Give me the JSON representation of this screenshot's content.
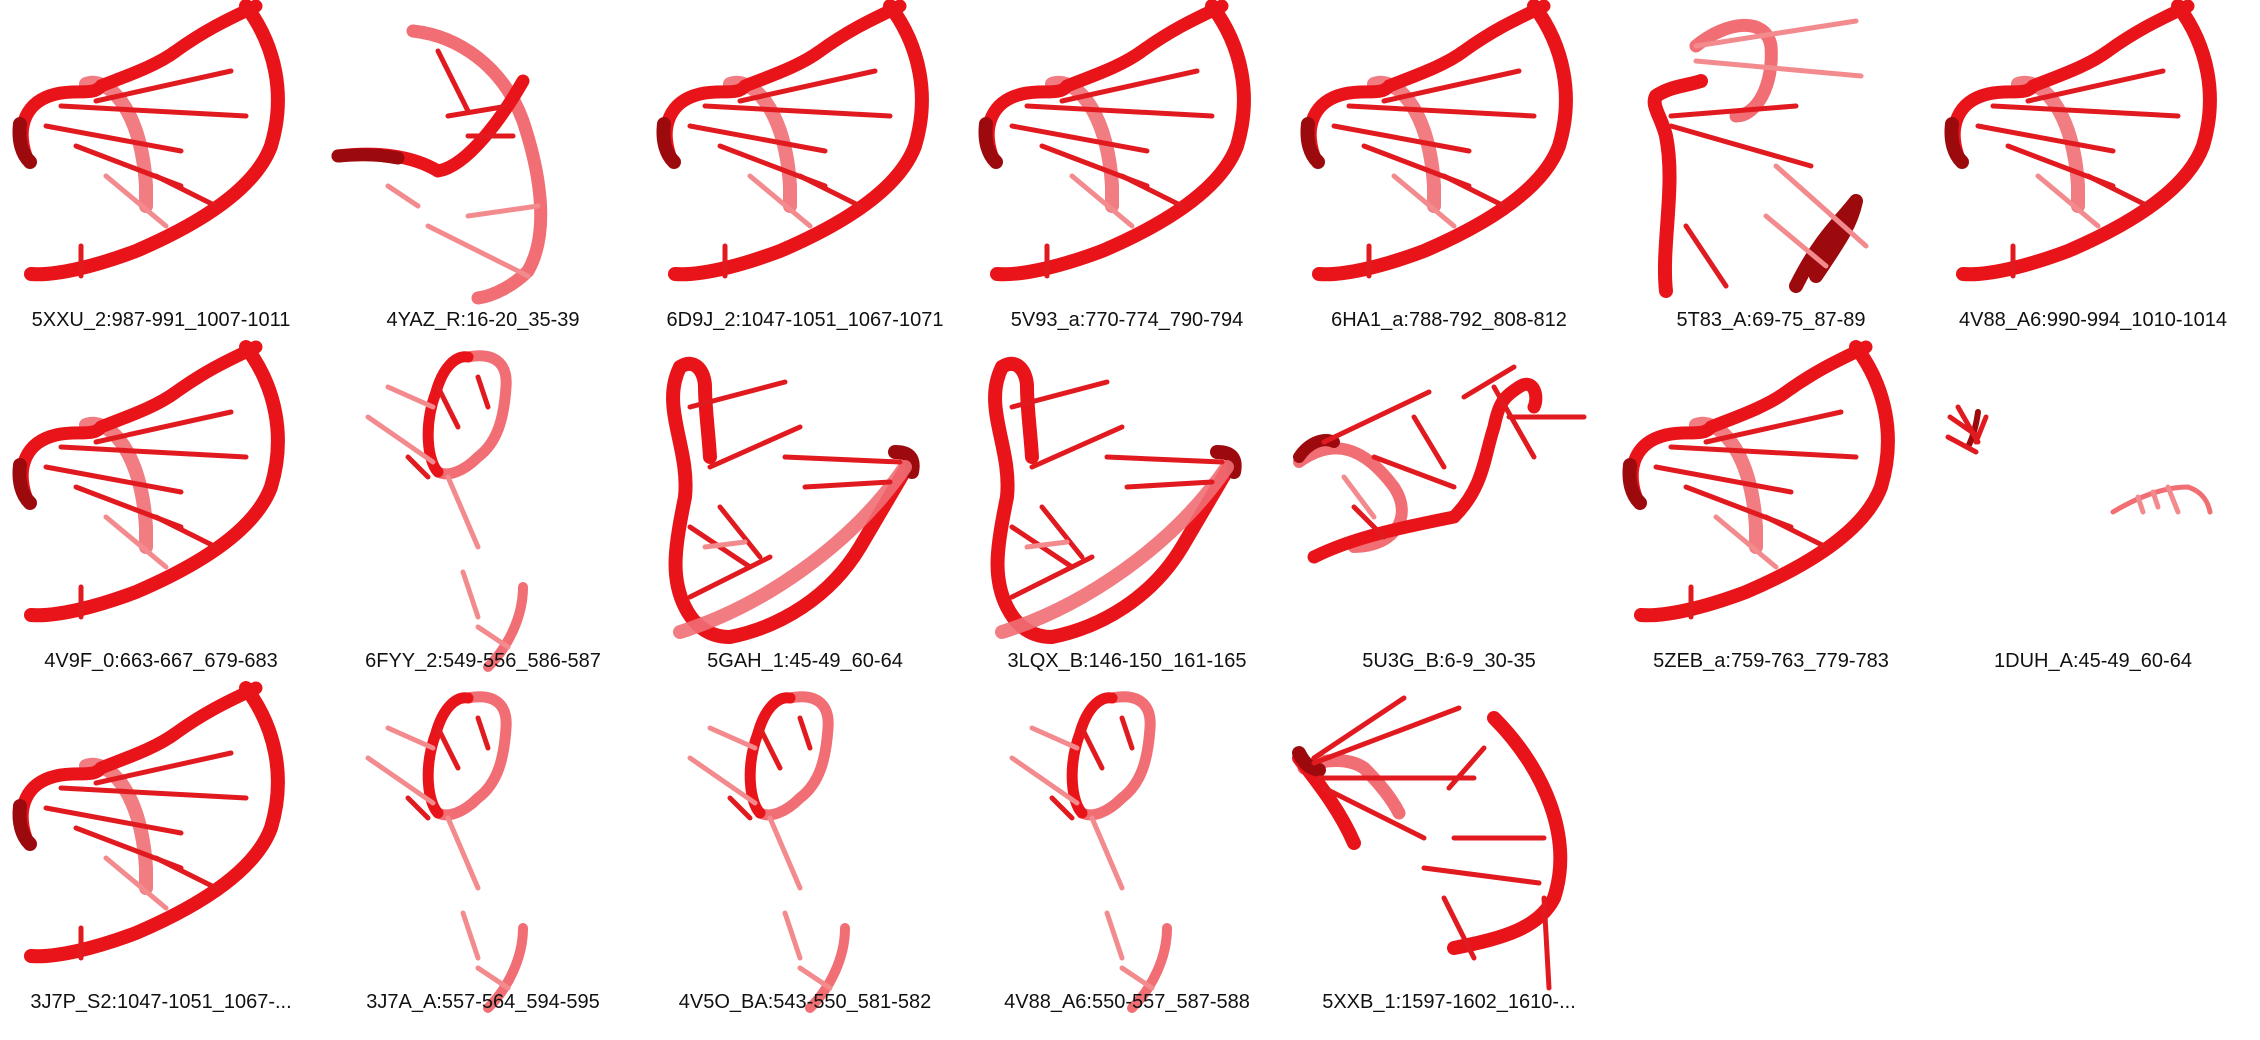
{
  "gallery": {
    "items": [
      {
        "label": "5XXU_2:987-991_1007-1011",
        "shape": "helix"
      },
      {
        "label": "4YAZ_R:16-20_35-39",
        "shape": "kinked"
      },
      {
        "label": "6D9J_2:1047-1051_1067-1071",
        "shape": "helix"
      },
      {
        "label": "5V93_a:770-774_790-794",
        "shape": "helix"
      },
      {
        "label": "6HA1_a:788-792_808-812",
        "shape": "helix"
      },
      {
        "label": "5T83_A:69-75_87-89",
        "shape": "twisted"
      },
      {
        "label": "4V88_A6:990-994_1010-1014",
        "shape": "helix"
      },
      {
        "label": "4V9F_0:663-667_679-683",
        "shape": "helix"
      },
      {
        "label": "6FYY_2:549-556_586-587",
        "shape": "loop"
      },
      {
        "label": "5GAH_1:45-49_60-64",
        "shape": "wide"
      },
      {
        "label": "3LQX_B:146-150_161-165",
        "shape": "wide"
      },
      {
        "label": "5U3G_B:6-9_30-35",
        "shape": "wave"
      },
      {
        "label": "5ZEB_a:759-763_779-783",
        "shape": "helix"
      },
      {
        "label": "1DUH_A:45-49_60-64",
        "shape": "tiny"
      },
      {
        "label": "3J7P_S2:1047-1051_1067-...",
        "shape": "helix"
      },
      {
        "label": "3J7A_A:557-564_594-595",
        "shape": "loop"
      },
      {
        "label": "4V5O_BA:543-550_581-582",
        "shape": "loop"
      },
      {
        "label": "4V88_A6:550-557_587-588",
        "shape": "loop"
      },
      {
        "label": "5XXB_1:1597-1602_1610-...",
        "shape": "fan"
      }
    ]
  },
  "colors": {
    "backbone": "#e8141a",
    "backbone_dark": "#9d0a0e",
    "backbone_light": "#f06e74",
    "rung": "#e11a20",
    "rung_light": "#f28a8e",
    "text": "#111111",
    "background": "#ffffff"
  }
}
